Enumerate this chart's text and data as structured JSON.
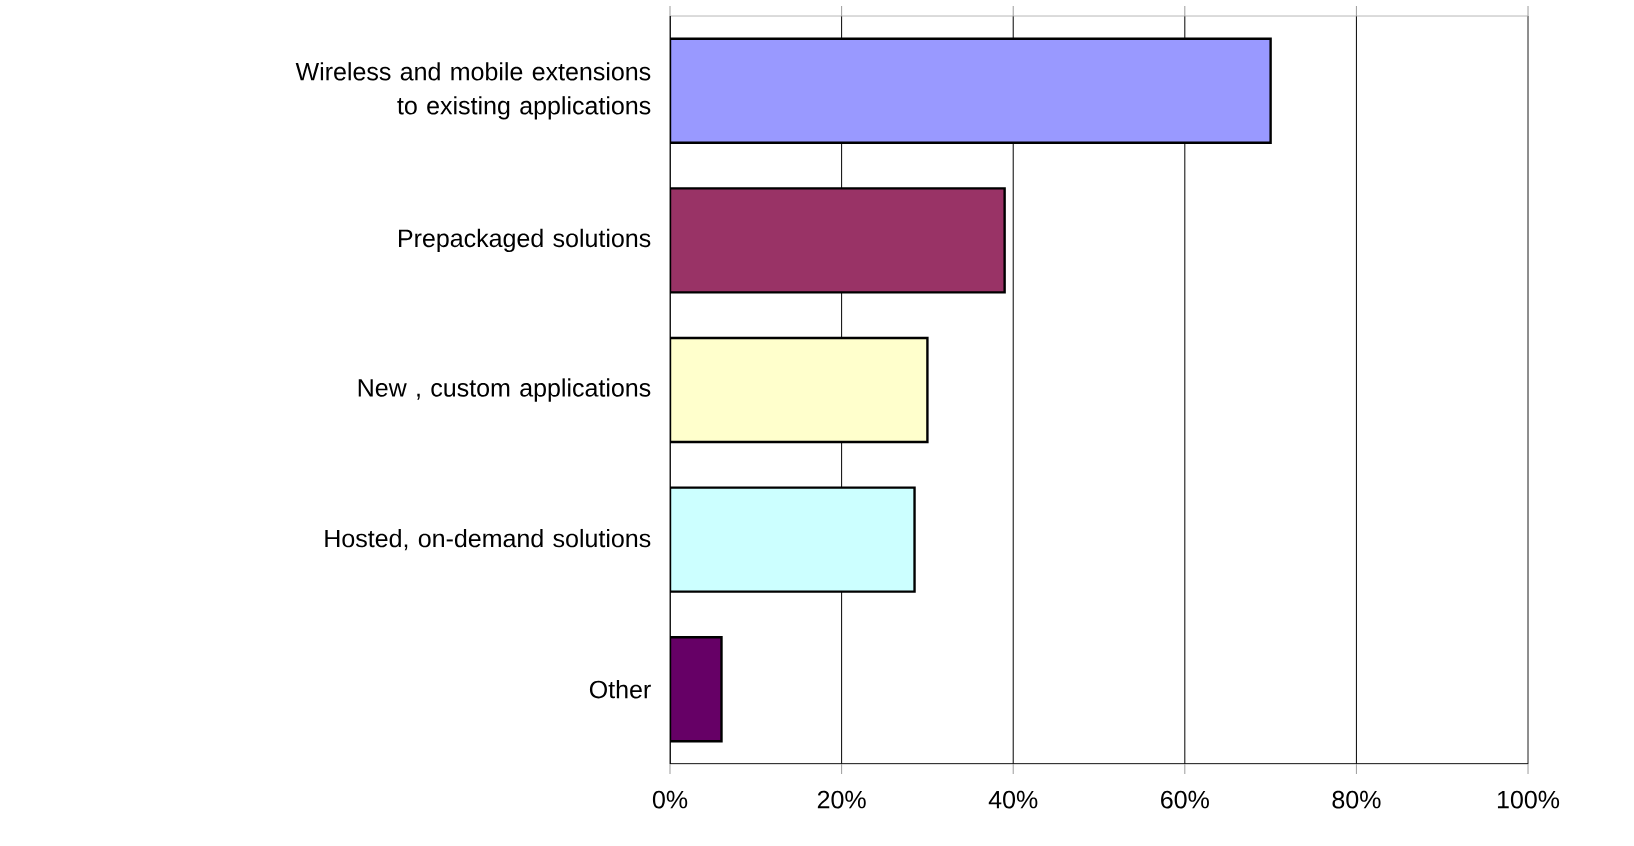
{
  "chart_data": {
    "type": "bar",
    "orientation": "horizontal",
    "categories": [
      "Wireless and mobile extensions to existing applications",
      "Prepackaged solutions",
      "New , custom applications",
      "Hosted, on-demand solutions",
      "Other"
    ],
    "values": [
      70,
      39,
      30,
      28.5,
      6
    ],
    "colors": [
      "#9999ff",
      "#993366",
      "#ffffcc",
      "#ccffff",
      "#660066"
    ],
    "xlim": [
      0,
      100
    ],
    "xticks": [
      {
        "value": 0,
        "label": "0%"
      },
      {
        "value": 20,
        "label": "20%"
      },
      {
        "value": 40,
        "label": "40%"
      },
      {
        "value": 60,
        "label": "60%"
      },
      {
        "value": 80,
        "label": "80%"
      },
      {
        "value": 100,
        "label": "100%"
      }
    ],
    "grid": "x"
  }
}
